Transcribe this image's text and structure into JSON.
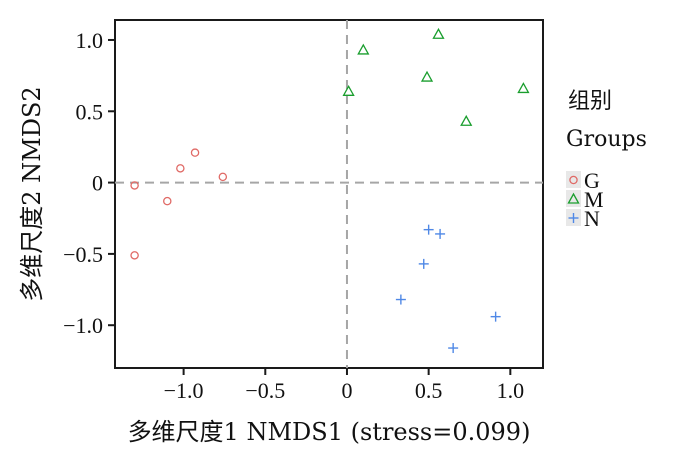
{
  "chart_data": {
    "type": "scatter",
    "xlabel": "多维尺度1 NMDS1 (stress=0.099)",
    "ylabel": "多维尺度2 NMDS2",
    "xlim": [
      -1.42,
      1.2
    ],
    "ylim": [
      -1.3,
      1.14
    ],
    "xticks": [
      -1.0,
      -0.5,
      0,
      0.5,
      1.0
    ],
    "xtick_labels": [
      "−1.0",
      "−0.5",
      "0",
      "0.5",
      "1.0"
    ],
    "yticks": [
      -1.0,
      -0.5,
      0,
      0.5,
      1.0
    ],
    "ytick_labels": [
      "−1.0",
      "−0.5",
      "0",
      "0.5",
      "1.0"
    ],
    "reference_lines": {
      "x": 0,
      "y": 0,
      "style": "dashed"
    },
    "grid": false,
    "legend": {
      "title_line1": "组别",
      "title_line2": "Groups",
      "placement": "right"
    },
    "series": [
      {
        "name": "G",
        "marker": "circle",
        "color": "#e06a66",
        "points": [
          [
            -1.3,
            -0.02
          ],
          [
            -1.3,
            -0.51
          ],
          [
            -1.1,
            -0.13
          ],
          [
            -1.02,
            0.1
          ],
          [
            -0.93,
            0.21
          ],
          [
            -0.76,
            0.04
          ]
        ]
      },
      {
        "name": "M",
        "marker": "triangle",
        "color": "#1a9e2e",
        "points": [
          [
            0.01,
            0.64
          ],
          [
            0.1,
            0.93
          ],
          [
            0.49,
            0.74
          ],
          [
            0.56,
            1.04
          ],
          [
            0.73,
            0.43
          ],
          [
            1.08,
            0.66
          ]
        ]
      },
      {
        "name": "N",
        "marker": "plus",
        "color": "#4f88e6",
        "points": [
          [
            0.33,
            -0.82
          ],
          [
            0.47,
            -0.57
          ],
          [
            0.5,
            -0.33
          ],
          [
            0.57,
            -0.36
          ],
          [
            0.65,
            -1.16
          ],
          [
            0.91,
            -0.94
          ]
        ]
      }
    ]
  }
}
